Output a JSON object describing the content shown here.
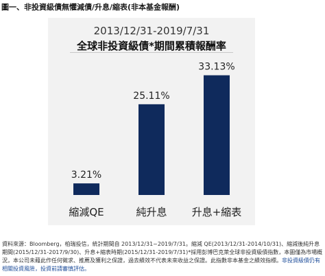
{
  "heading": "圖一、非投資級債無懼減債/升息/縮表(非本基金報酬)",
  "chart_data": {
    "type": "bar",
    "title": "2013/12/31-2019/7/31",
    "subtitle": "全球非投資級債*期間累積報酬率",
    "categories": [
      "縮減QE",
      "純升息",
      "升息+縮表"
    ],
    "values": [
      3.21,
      25.11,
      33.13
    ],
    "value_labels": [
      "3.21%",
      "25.11%",
      "33.13%"
    ],
    "ylim": [
      0,
      38
    ],
    "bar_color": "#0f2a5c",
    "grid": false,
    "legend": "none"
  },
  "source": {
    "text": "資料來源：Bloomberg，柏瑞投信，統計期間自 2013/12/31~2019/7/31。縮減 QE(2013/12/31-2014/10/31)、縮減後純升息期間(2015/12/31-2017/9/30)、升息+縮表時期(2015/12/31-2019/7/31)*採用彭博巴克萊全球非投資級債指數，本圖僅為市場概況，本公司未藉此作任何徵求、推薦及獲利之保證，過去績效不代表未來收益之保證。此指數非本基金之績效指標。",
    "highlight": "非投資級債仍有相關投資風險，投資前請審慎評估。"
  }
}
